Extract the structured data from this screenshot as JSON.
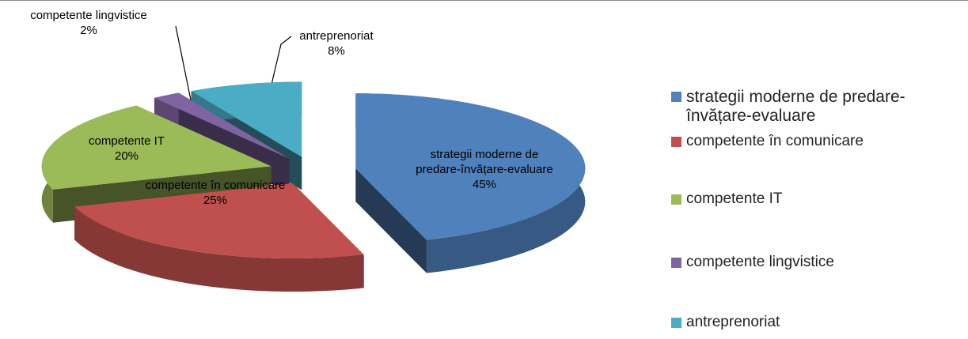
{
  "chart_data": {
    "type": "pie",
    "categories": [
      "strategii moderne de predare-învățare-evaluare",
      "competente în comunicare",
      "competente IT",
      "competente lingvistice",
      "antreprenoriat"
    ],
    "values": [
      45,
      25,
      20,
      2,
      8
    ],
    "value_labels": [
      "45%",
      "25%",
      "20%",
      "2%",
      "8%"
    ],
    "colors": [
      "#4f81bd",
      "#c0504d",
      "#9bbb59",
      "#8064a2",
      "#4bacc6"
    ],
    "legend": "right"
  }
}
